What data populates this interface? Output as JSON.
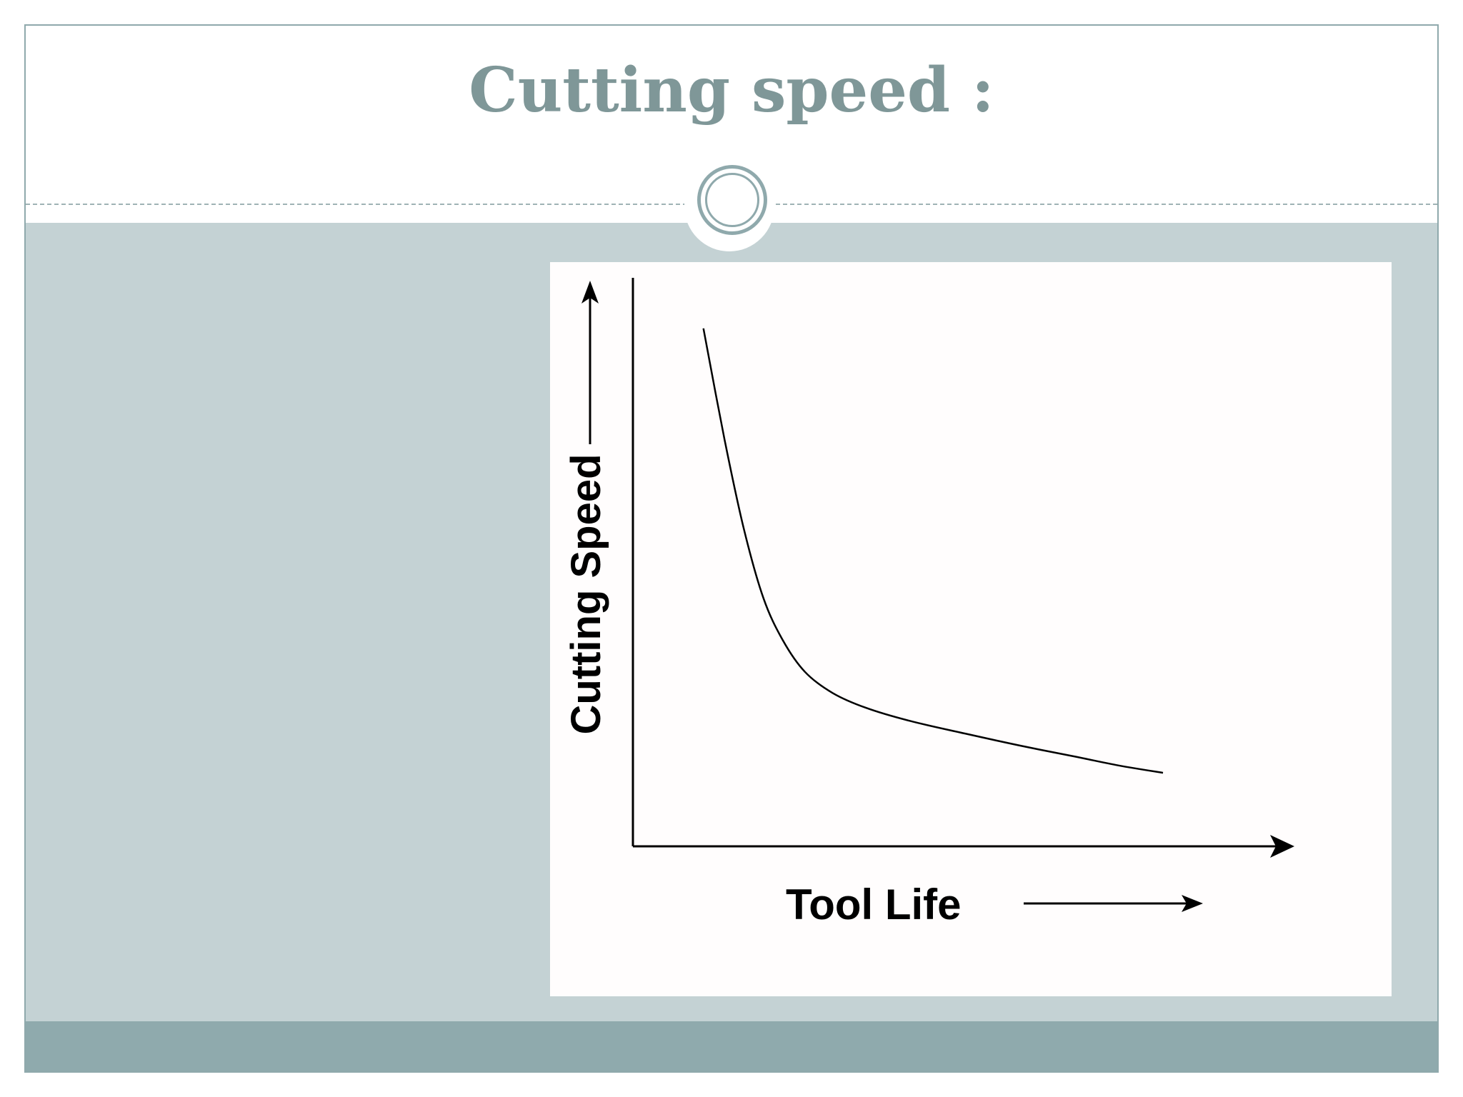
{
  "slide": {
    "title": "Cutting speed :"
  },
  "colors": {
    "title": "#7f9798",
    "body_panel": "#c4d2d4",
    "footer_band": "#8faaad",
    "border": "#8fa9ac",
    "chart_background": "#fffdfd",
    "chart_ink": "#000000"
  },
  "chart_data": {
    "type": "line",
    "title": "",
    "xlabel": "Tool Life",
    "ylabel": "Cutting Speed",
    "xlim": [
      0,
      1
    ],
    "ylim": [
      0,
      1
    ],
    "grid": false,
    "legend": "none",
    "ticks": false,
    "series": [
      {
        "x": [
          0.127,
          0.165,
          0.2,
          0.235,
          0.27,
          0.31,
          0.36,
          0.42,
          0.5,
          0.6,
          0.7,
          0.8,
          0.875,
          0.955
        ],
        "y": [
          0.98,
          0.77,
          0.6,
          0.47,
          0.39,
          0.33,
          0.29,
          0.262,
          0.237,
          0.213,
          0.19,
          0.169,
          0.153,
          0.139
        ]
      }
    ]
  }
}
